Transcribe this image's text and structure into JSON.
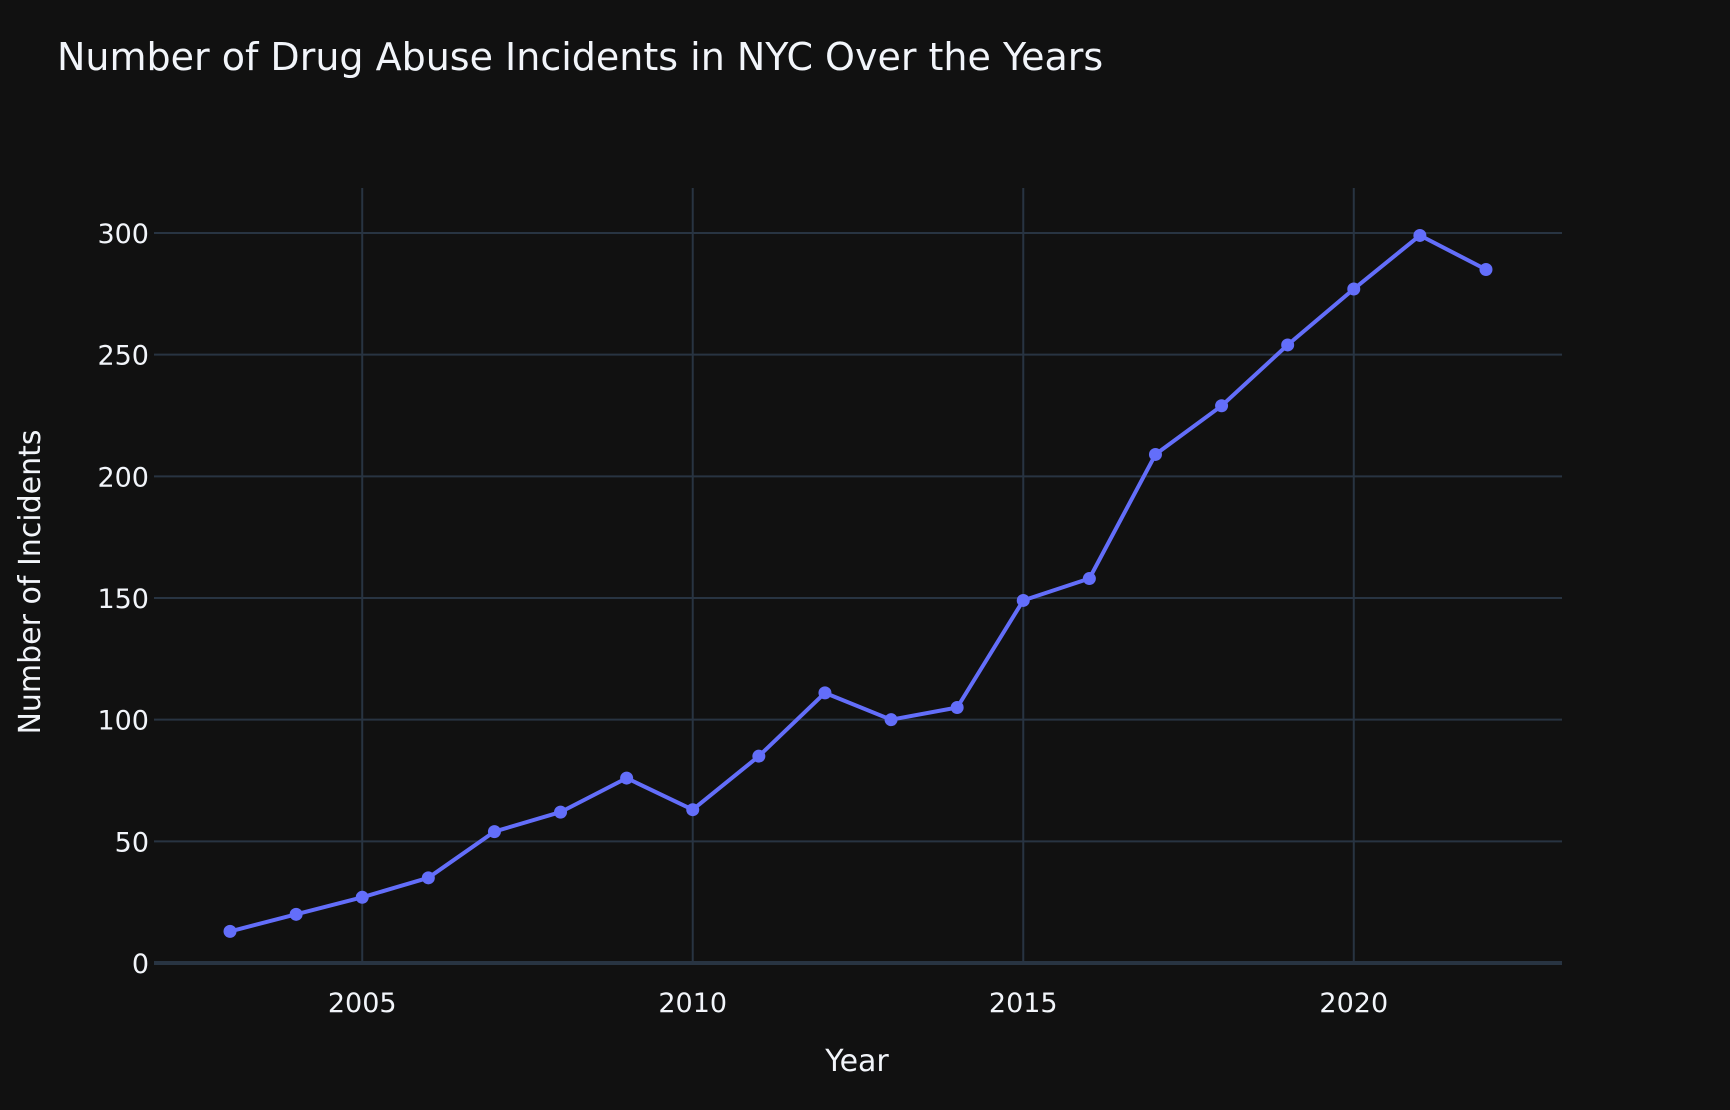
{
  "colors": {
    "background": "#111111",
    "grid": "#283442",
    "zeroline": "#283442",
    "text": "#f2f5fa",
    "series": "#636efa"
  },
  "chart_data": {
    "type": "line",
    "title": "Number of Drug Abuse Incidents in NYC Over the Years",
    "xlabel": "Year",
    "ylabel": "Number of Incidents",
    "x": [
      2003,
      2004,
      2005,
      2006,
      2007,
      2008,
      2009,
      2010,
      2011,
      2012,
      2013,
      2014,
      2015,
      2016,
      2017,
      2018,
      2019,
      2020,
      2021,
      2022
    ],
    "y": [
      13,
      20,
      27,
      35,
      54,
      62,
      76,
      63,
      85,
      111,
      100,
      105,
      149,
      158,
      209,
      229,
      254,
      277,
      299,
      285
    ],
    "xlim": [
      2001.85,
      2023.15
    ],
    "ylim": [
      0,
      318.5
    ],
    "xticks": [
      2005,
      2010,
      2015,
      2020
    ],
    "yticks": [
      0,
      50,
      100,
      150,
      200,
      250,
      300
    ],
    "grid": true,
    "markers": true
  }
}
